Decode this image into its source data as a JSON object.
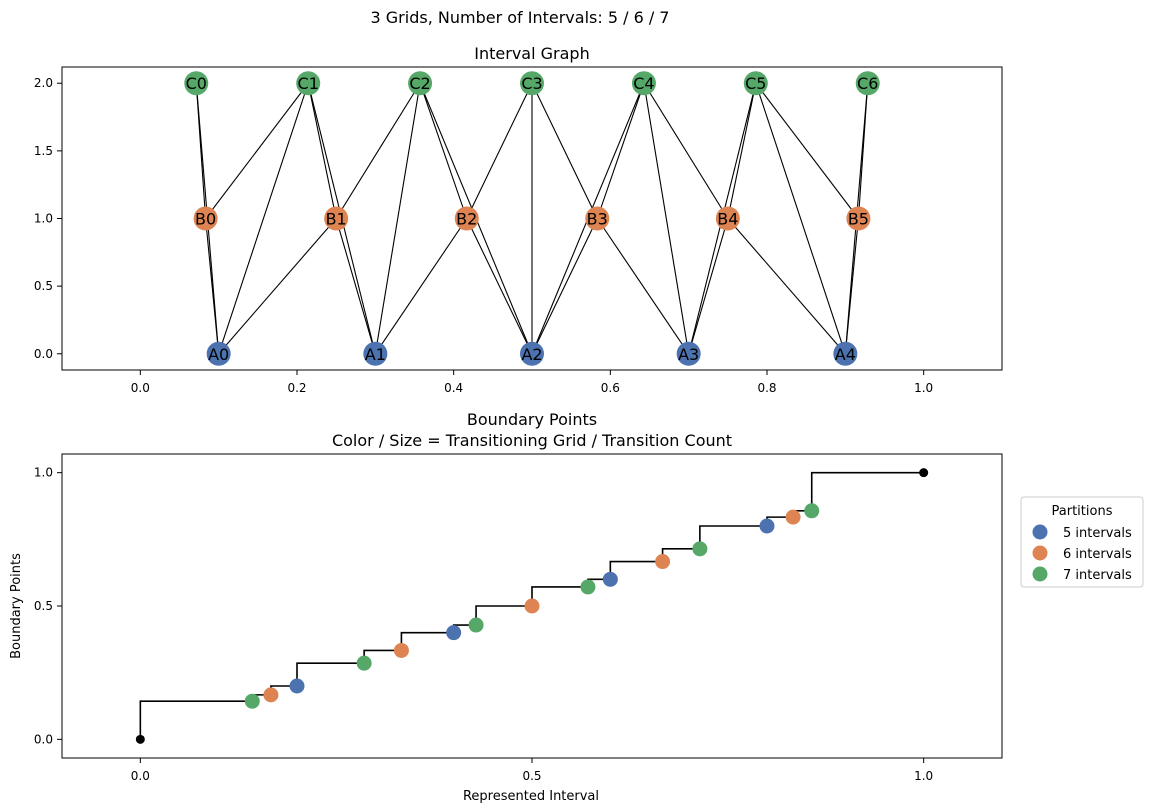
{
  "figure": {
    "suptitle": "3 Grids, Number of Intervals: 5 / 6 / 7"
  },
  "colors": {
    "A": "#4c72b0",
    "B": "#dd8452",
    "C": "#55a868",
    "edge": "#000000",
    "step": "#000000",
    "endpoint": "#000000"
  },
  "chart_data": [
    {
      "type": "scatter",
      "title": "Interval Graph",
      "xlim": [
        -0.1,
        1.1
      ],
      "ylim": [
        -0.12,
        2.12
      ],
      "xticks": [
        0.0,
        0.2,
        0.4,
        0.6,
        0.8,
        1.0
      ],
      "xtick_labels": [
        "0.0",
        "0.2",
        "0.4",
        "0.6",
        "0.8",
        "1.0"
      ],
      "yticks": [
        0.0,
        0.5,
        1.0,
        1.5,
        2.0
      ],
      "ytick_labels": [
        "0.0",
        "0.5",
        "1.0",
        "1.5",
        "2.0"
      ],
      "nodes": [
        {
          "label": "A0",
          "group": "A",
          "x": 0.1,
          "y": 0
        },
        {
          "label": "A1",
          "group": "A",
          "x": 0.3,
          "y": 0
        },
        {
          "label": "A2",
          "group": "A",
          "x": 0.5,
          "y": 0
        },
        {
          "label": "A3",
          "group": "A",
          "x": 0.7,
          "y": 0
        },
        {
          "label": "A4",
          "group": "A",
          "x": 0.9,
          "y": 0
        },
        {
          "label": "B0",
          "group": "B",
          "x": 0.0833,
          "y": 1
        },
        {
          "label": "B1",
          "group": "B",
          "x": 0.25,
          "y": 1
        },
        {
          "label": "B2",
          "group": "B",
          "x": 0.4167,
          "y": 1
        },
        {
          "label": "B3",
          "group": "B",
          "x": 0.5833,
          "y": 1
        },
        {
          "label": "B4",
          "group": "B",
          "x": 0.75,
          "y": 1
        },
        {
          "label": "B5",
          "group": "B",
          "x": 0.9167,
          "y": 1
        },
        {
          "label": "C0",
          "group": "C",
          "x": 0.0714,
          "y": 2
        },
        {
          "label": "C1",
          "group": "C",
          "x": 0.2143,
          "y": 2
        },
        {
          "label": "C2",
          "group": "C",
          "x": 0.3571,
          "y": 2
        },
        {
          "label": "C3",
          "group": "C",
          "x": 0.5,
          "y": 2
        },
        {
          "label": "C4",
          "group": "C",
          "x": 0.6429,
          "y": 2
        },
        {
          "label": "C5",
          "group": "C",
          "x": 0.7857,
          "y": 2
        },
        {
          "label": "C6",
          "group": "C",
          "x": 0.9286,
          "y": 2
        }
      ],
      "edges": [
        [
          "A0",
          "B0"
        ],
        [
          "A0",
          "B1"
        ],
        [
          "A0",
          "C0"
        ],
        [
          "A0",
          "C1"
        ],
        [
          "A1",
          "B1"
        ],
        [
          "A1",
          "B2"
        ],
        [
          "A1",
          "C1"
        ],
        [
          "A1",
          "C2"
        ],
        [
          "A2",
          "B2"
        ],
        [
          "A2",
          "B3"
        ],
        [
          "A2",
          "C2"
        ],
        [
          "A2",
          "C3"
        ],
        [
          "A2",
          "C4"
        ],
        [
          "A3",
          "B3"
        ],
        [
          "A3",
          "B4"
        ],
        [
          "A3",
          "C4"
        ],
        [
          "A3",
          "C5"
        ],
        [
          "A4",
          "B4"
        ],
        [
          "A4",
          "B5"
        ],
        [
          "A4",
          "C5"
        ],
        [
          "A4",
          "C6"
        ],
        [
          "B0",
          "C0"
        ],
        [
          "B0",
          "C1"
        ],
        [
          "B1",
          "C1"
        ],
        [
          "B1",
          "C2"
        ],
        [
          "B2",
          "C2"
        ],
        [
          "B2",
          "C3"
        ],
        [
          "B3",
          "C3"
        ],
        [
          "B3",
          "C4"
        ],
        [
          "B4",
          "C4"
        ],
        [
          "B4",
          "C5"
        ],
        [
          "B5",
          "C5"
        ],
        [
          "B5",
          "C6"
        ]
      ]
    },
    {
      "type": "scatter",
      "title": "Boundary Points",
      "subtitle": "Color / Size = Transitioning Grid / Transition Count",
      "xlabel": "Represented Interval",
      "ylabel": "Boundary Points",
      "xlim": [
        -0.1,
        1.1
      ],
      "ylim": [
        -0.07,
        1.07
      ],
      "xticks": [
        0.0,
        0.5,
        1.0
      ],
      "xtick_labels": [
        "0.0",
        "0.5",
        "1.0"
      ],
      "yticks": [
        0.0,
        0.5,
        1.0
      ],
      "ytick_labels": [
        "0.0",
        "0.5",
        "1.0"
      ],
      "legend": {
        "title": "Partitions",
        "placement": "outside-right",
        "entries": [
          {
            "label": "5 intervals",
            "group": "A"
          },
          {
            "label": "6 intervals",
            "group": "B"
          },
          {
            "label": "7 intervals",
            "group": "C"
          }
        ]
      },
      "points": [
        {
          "x": 0.1429,
          "y": 0.1429,
          "group": "C"
        },
        {
          "x": 0.1667,
          "y": 0.1667,
          "group": "B"
        },
        {
          "x": 0.2,
          "y": 0.2,
          "group": "A"
        },
        {
          "x": 0.2857,
          "y": 0.2857,
          "group": "C"
        },
        {
          "x": 0.3333,
          "y": 0.3333,
          "group": "B"
        },
        {
          "x": 0.4,
          "y": 0.4,
          "group": "A"
        },
        {
          "x": 0.4286,
          "y": 0.4286,
          "group": "C"
        },
        {
          "x": 0.5,
          "y": 0.5,
          "group": "B"
        },
        {
          "x": 0.5714,
          "y": 0.5714,
          "group": "C"
        },
        {
          "x": 0.6,
          "y": 0.6,
          "group": "A"
        },
        {
          "x": 0.6667,
          "y": 0.6667,
          "group": "B"
        },
        {
          "x": 0.7143,
          "y": 0.7143,
          "group": "C"
        },
        {
          "x": 0.8,
          "y": 0.8,
          "group": "A"
        },
        {
          "x": 0.8333,
          "y": 0.8333,
          "group": "B"
        },
        {
          "x": 0.8571,
          "y": 0.8571,
          "group": "C"
        }
      ],
      "endpoints": [
        {
          "x": 0,
          "y": 0
        },
        {
          "x": 1,
          "y": 1
        }
      ]
    }
  ]
}
